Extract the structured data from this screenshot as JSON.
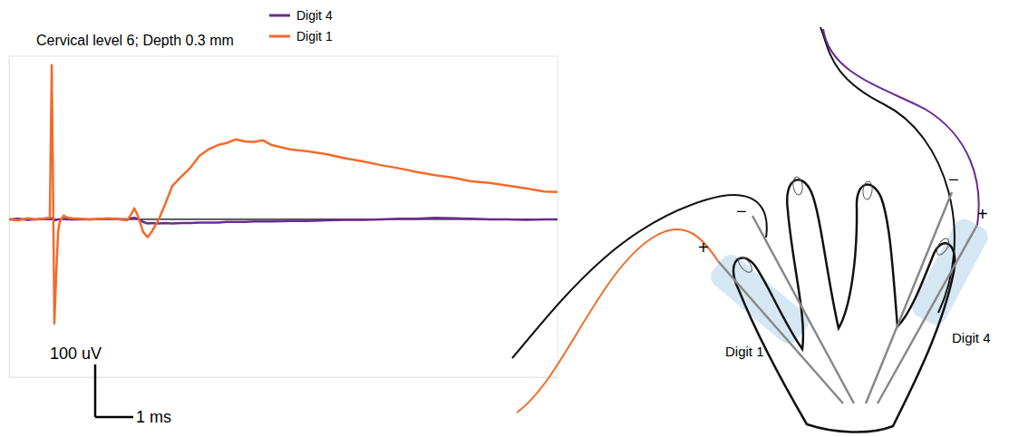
{
  "chart_data": {
    "type": "line",
    "title": "Cervical level 6; Depth 0.3 mm",
    "x": [
      0,
      0.24,
      0.48,
      0.71,
      0.95,
      1.07,
      1.12,
      1.14,
      1.19,
      1.24,
      1.29,
      1.33,
      1.43,
      1.55,
      1.67,
      2.14,
      2.62,
      3.1,
      3.21,
      3.29,
      3.38,
      3.52,
      3.64,
      3.76,
      3.93,
      4.1,
      4.29,
      4.52,
      4.76,
      5.0,
      5.24,
      5.48,
      5.71,
      5.95,
      6.19,
      6.43,
      6.67,
      6.9,
      7.38,
      7.86,
      8.33,
      8.81,
      9.29,
      9.76,
      10.24,
      10.71,
      11.19,
      11.67,
      12.14,
      12.62,
      13.1,
      13.57,
      14.05,
      14.4
    ],
    "series": [
      {
        "name": "Digit 4",
        "color": "#6a2c91",
        "values": [
          0,
          1,
          -1,
          0,
          1,
          0,
          2,
          1,
          -2,
          -1,
          0,
          0,
          1,
          0,
          0,
          0,
          1,
          0,
          2,
          3,
          1,
          -5,
          -8,
          -7,
          -8,
          -7,
          -8,
          -7,
          -7,
          -6,
          -6,
          -6,
          -5,
          -5,
          -5,
          -4,
          -4,
          -4,
          -3,
          -3,
          -2,
          -1,
          -1,
          0,
          1,
          1,
          3,
          2,
          1,
          0,
          0,
          -1,
          0,
          0
        ]
      },
      {
        "name": "Digit 1",
        "color": "#f26b2b",
        "values": [
          0,
          -2,
          2,
          0,
          2,
          3,
          293,
          159,
          -198,
          -100,
          -22,
          -5,
          7,
          3,
          2,
          0,
          2,
          -2,
          10,
          21,
          7,
          -24,
          -34,
          -22,
          0,
          29,
          64,
          81,
          98,
          121,
          133,
          141,
          145,
          152,
          148,
          147,
          150,
          141,
          133,
          129,
          124,
          116,
          110,
          103,
          97,
          90,
          84,
          79,
          72,
          69,
          64,
          59,
          53,
          52
        ]
      }
    ],
    "xlim": [
      0,
      14.4
    ],
    "ylim": [
      -300,
      310
    ],
    "tick_labels": false,
    "legend": "top",
    "scale_bar": {
      "x": 1,
      "x_label": "1 ms",
      "y": 100,
      "y_label": "100 uV"
    }
  },
  "diagram": {
    "digits": [
      {
        "label": "Digit 1",
        "positive": "+",
        "negative": "−"
      },
      {
        "label": "Digit 4",
        "positive": "+",
        "negative": "−"
      }
    ]
  }
}
